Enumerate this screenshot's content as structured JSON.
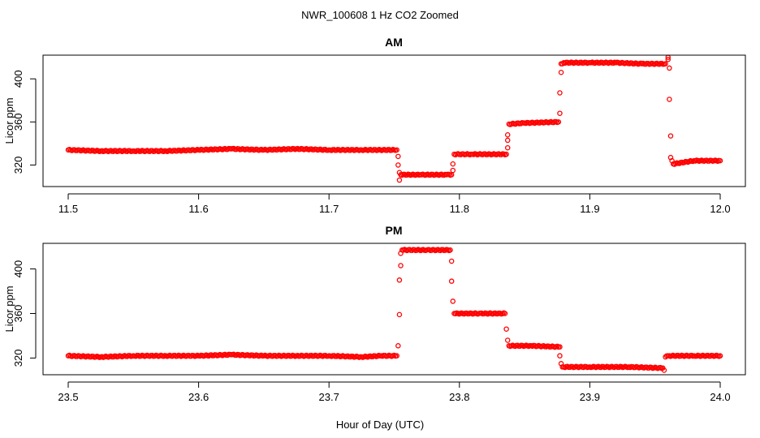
{
  "figure": {
    "title": "NWR_100608  1 Hz CO2 Zoomed",
    "xlabel": "Hour of Day (UTC)"
  },
  "chart_data": [
    {
      "type": "scatter",
      "title": "AM",
      "xlabel": "",
      "ylabel": "Licor ppm",
      "xlim": [
        11.5,
        12.0
      ],
      "ylim": [
        300,
        422
      ],
      "xticks": [
        "11.5",
        "11.6",
        "11.7",
        "11.8",
        "11.9",
        "12.0"
      ],
      "yticks": [
        "320",
        "360",
        "400"
      ],
      "grid": false,
      "marker_color": "#ff0000",
      "series": [
        {
          "x": [
            11.5,
            11.525,
            11.55,
            11.575,
            11.6,
            11.625,
            11.65,
            11.675,
            11.7,
            11.725,
            11.75,
            11.752,
            11.753,
            11.753,
            11.754,
            11.754,
            11.755,
            11.77,
            11.79,
            11.794,
            11.795,
            11.795,
            11.796,
            11.81,
            11.836,
            11.837,
            11.837,
            11.837,
            11.838,
            11.85,
            11.876,
            11.877,
            11.877,
            11.878,
            11.878,
            11.88,
            11.9,
            11.92,
            11.94,
            11.958,
            11.96,
            11.96,
            11.961,
            11.961,
            11.962,
            11.962,
            11.963,
            11.964,
            11.98,
            12.0
          ],
          "y": [
            334,
            333,
            333,
            333,
            334,
            335,
            334,
            335,
            334,
            334,
            334,
            334,
            328,
            320,
            313,
            306,
            311,
            311,
            311,
            311,
            315,
            321,
            330,
            330,
            330,
            336,
            343,
            348,
            358,
            359,
            360,
            368,
            387,
            406,
            414,
            415,
            415,
            415,
            414,
            414,
            420,
            418,
            410,
            381,
            347,
            327,
            324,
            321,
            324,
            324
          ]
        }
      ]
    },
    {
      "type": "scatter",
      "title": "PM",
      "xlabel": "",
      "ylabel": "Licor ppm",
      "xlim": [
        23.5,
        24.0
      ],
      "ylim": [
        305,
        423
      ],
      "xticks": [
        "23.5",
        "23.6",
        "23.7",
        "23.8",
        "23.9",
        "24.0"
      ],
      "yticks": [
        "320",
        "360",
        "400"
      ],
      "grid": false,
      "marker_color": "#ff0000",
      "series": [
        {
          "x": [
            23.5,
            23.525,
            23.55,
            23.575,
            23.6,
            23.625,
            23.65,
            23.675,
            23.7,
            23.725,
            23.74,
            23.752,
            23.753,
            23.754,
            23.754,
            23.755,
            23.755,
            23.756,
            23.775,
            23.793,
            23.794,
            23.794,
            23.795,
            23.796,
            23.815,
            23.835,
            23.836,
            23.837,
            23.838,
            23.855,
            23.877,
            23.877,
            23.878,
            23.879,
            23.9,
            23.93,
            23.956,
            23.957,
            23.958,
            23.96,
            23.98,
            24.0
          ],
          "y": [
            322,
            321,
            322,
            322,
            322,
            323,
            322,
            322,
            322,
            321,
            322,
            322,
            331,
            359,
            390,
            403,
            414,
            417,
            417,
            417,
            407,
            389,
            371,
            360,
            360,
            360,
            346,
            336,
            331,
            331,
            330,
            322,
            315,
            312,
            312,
            312,
            311,
            309,
            321,
            322,
            322,
            322
          ]
        }
      ]
    }
  ]
}
